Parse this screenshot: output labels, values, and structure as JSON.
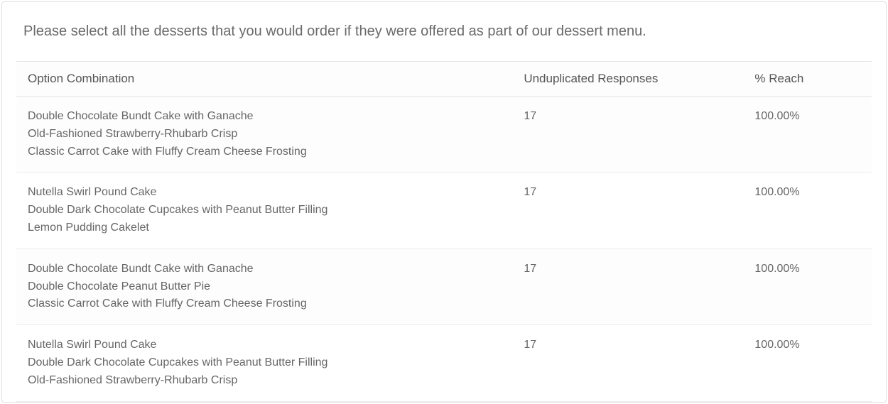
{
  "question": "Please select all the desserts that you would order if they were offered as part of our dessert menu.",
  "table": {
    "columns": {
      "option": "Option Combination",
      "responses": "Unduplicated Responses",
      "reach": "% Reach"
    },
    "rows": [
      {
        "options": [
          "Double Chocolate Bundt Cake with Ganache",
          "Old-Fashioned Strawberry-Rhubarb Crisp",
          "Classic Carrot Cake with Fluffy Cream Cheese Frosting"
        ],
        "responses": "17",
        "reach": "100.00%"
      },
      {
        "options": [
          "Nutella Swirl Pound Cake",
          "Double Dark Chocolate Cupcakes with Peanut Butter Filling",
          "Lemon Pudding Cakelet"
        ],
        "responses": "17",
        "reach": "100.00%"
      },
      {
        "options": [
          "Double Chocolate Bundt Cake with Ganache",
          "Double Chocolate Peanut Butter Pie",
          "Classic Carrot Cake with Fluffy Cream Cheese Frosting"
        ],
        "responses": "17",
        "reach": "100.00%"
      },
      {
        "options": [
          "Nutella Swirl Pound Cake",
          "Double Dark Chocolate Cupcakes with Peanut Butter Filling",
          "Old-Fashioned Strawberry-Rhubarb Crisp"
        ],
        "responses": "17",
        "reach": "100.00%"
      }
    ]
  },
  "style": {
    "text_color": "#666666",
    "border_color": "#e6e6e6",
    "background": "#ffffff",
    "alt_row_bg": "#fdfdfd",
    "question_fontsize": 20,
    "header_fontsize": 17,
    "cell_fontsize": 16
  }
}
